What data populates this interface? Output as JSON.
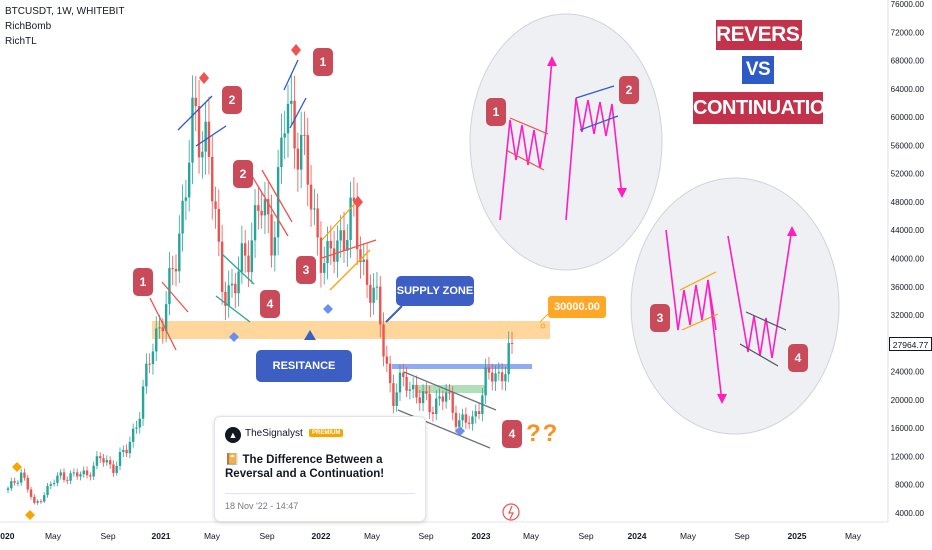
{
  "header": {
    "symbol_line": "BTCUSDT, 1W, WHITEBIT",
    "indicator_1": "RichBomb",
    "indicator_2": "RichTL"
  },
  "banner": {
    "word_1": "REVERSAL",
    "word_2": "VS",
    "word_3": "CONTINUATION"
  },
  "labels": {
    "supply_zone": "SUPPLY ZONE",
    "resistance_zone": "RESITANCE ZONE",
    "price_tag": "30000.00",
    "current_price": "27964.77",
    "question": "??"
  },
  "badges": [
    "1",
    "2",
    "1",
    "2",
    "1",
    "2",
    "3",
    "4",
    "3",
    "4",
    "4"
  ],
  "card": {
    "author": "TheSignalyst",
    "badge": "PREMIUM",
    "logo": "▲",
    "icon": "📔",
    "title": "The Difference Between a Reversal and a Continuation!",
    "date": "18 Nov '22 - 14:47"
  },
  "colors": {
    "up": "#26a69a",
    "down": "#ef5350",
    "badge": "#c94a59",
    "zone": "#ffb74d",
    "blue_callout": "#3d5fc4",
    "pink": "#ff1fbf",
    "banner_red": "#c2334b",
    "banner_blue": "#2e5ac8",
    "price_tag": "#ffa726"
  },
  "chart_data": {
    "type": "candlestick",
    "timeframe": "1W",
    "x_axis_ticks": [
      "2020",
      "May",
      "Sep",
      "2021",
      "May",
      "Sep",
      "2022",
      "May",
      "Sep",
      "2023",
      "May",
      "Sep",
      "2024",
      "May",
      "Sep",
      "2025",
      "May"
    ],
    "y_axis_ticks": [
      76000,
      72000,
      68000,
      64000,
      60000,
      56000,
      52000,
      48000,
      44000,
      40000,
      36000,
      32000,
      28000,
      24000,
      20000,
      16000,
      12000,
      8000,
      4000
    ],
    "y_range": [
      4000,
      76000
    ],
    "price_path": [
      [
        "2020-01",
        7200
      ],
      [
        "2020-02",
        9800
      ],
      [
        "2020-03",
        5000
      ],
      [
        "2020-04",
        7500
      ],
      [
        "2020-05",
        9400
      ],
      [
        "2020-06",
        9200
      ],
      [
        "2020-07",
        9700
      ],
      [
        "2020-08",
        11700
      ],
      [
        "2020-09",
        10500
      ],
      [
        "2020-10",
        13100
      ],
      [
        "2020-11",
        18800
      ],
      [
        "2020-12",
        28900
      ],
      [
        "2021-01",
        33100
      ],
      [
        "2021-02",
        45100
      ],
      [
        "2021-03",
        58900
      ],
      [
        "2021-04",
        57700
      ],
      [
        "2021-05",
        37300
      ],
      [
        "2021-06",
        35000
      ],
      [
        "2021-07",
        41500
      ],
      [
        "2021-08",
        47100
      ],
      [
        "2021-09",
        43800
      ],
      [
        "2021-10",
        61300
      ],
      [
        "2021-11",
        57000
      ],
      [
        "2021-12",
        46300
      ],
      [
        "2022-01",
        38500
      ],
      [
        "2022-02",
        43200
      ],
      [
        "2022-03",
        45500
      ],
      [
        "2022-04",
        37700
      ],
      [
        "2022-05",
        31800
      ],
      [
        "2022-06",
        19900
      ],
      [
        "2022-07",
        23300
      ],
      [
        "2022-08",
        20000
      ],
      [
        "2022-09",
        19400
      ],
      [
        "2022-10",
        20500
      ],
      [
        "2022-11",
        17200
      ],
      [
        "2022-12",
        16500
      ],
      [
        "2023-01",
        23100
      ],
      [
        "2023-02",
        23100
      ],
      [
        "2023-03",
        27964.77
      ]
    ],
    "resistance_zone": [
      29000,
      31000
    ],
    "price_line": 30000,
    "last_price": 27964.77
  }
}
